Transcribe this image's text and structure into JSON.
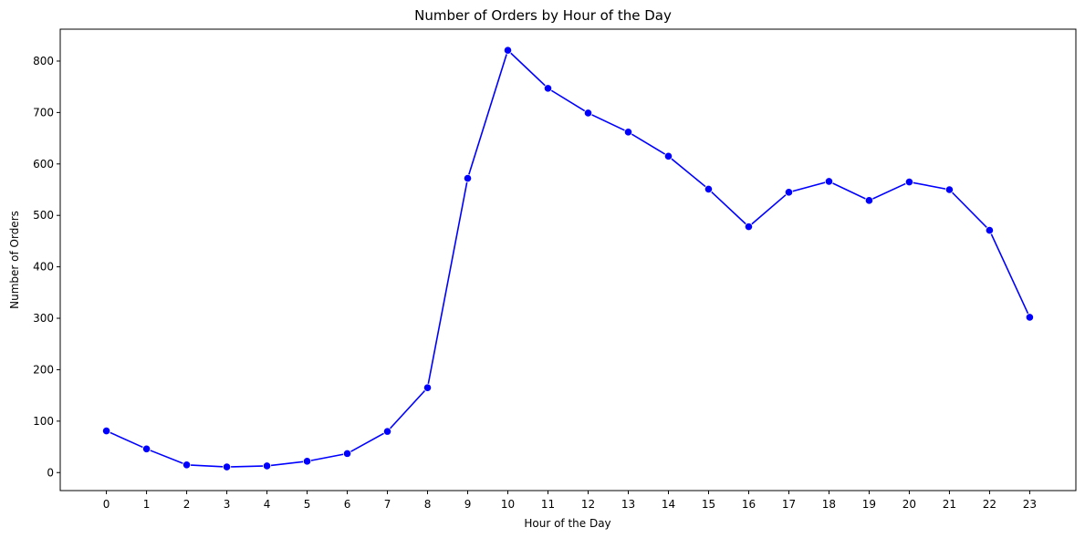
{
  "chart_data": {
    "type": "line",
    "title": "Number of Orders by Hour of the Day",
    "xlabel": "Hour of the Day",
    "ylabel": "Number of Orders",
    "x": [
      0,
      1,
      2,
      3,
      4,
      5,
      6,
      7,
      8,
      9,
      10,
      11,
      12,
      13,
      14,
      15,
      16,
      17,
      18,
      19,
      20,
      21,
      22,
      23
    ],
    "series": [
      {
        "values": [
          81,
          46,
          15,
          11,
          13,
          22,
          37,
          80,
          165,
          572,
          821,
          747,
          699,
          662,
          615,
          551,
          478,
          545,
          566,
          529,
          565,
          550,
          471,
          302
        ],
        "color": "#0000ff"
      }
    ],
    "xticks": [
      "0",
      "1",
      "2",
      "3",
      "4",
      "5",
      "6",
      "7",
      "8",
      "9",
      "10",
      "11",
      "12",
      "13",
      "14",
      "15",
      "16",
      "17",
      "18",
      "19",
      "20",
      "21",
      "22",
      "23"
    ],
    "yticks": [
      0,
      100,
      200,
      300,
      400,
      500,
      600,
      700,
      800
    ],
    "xlim": [
      -1.15,
      24.15
    ],
    "ylim": [
      -35,
      862
    ],
    "grid": false,
    "marker": "circle"
  }
}
